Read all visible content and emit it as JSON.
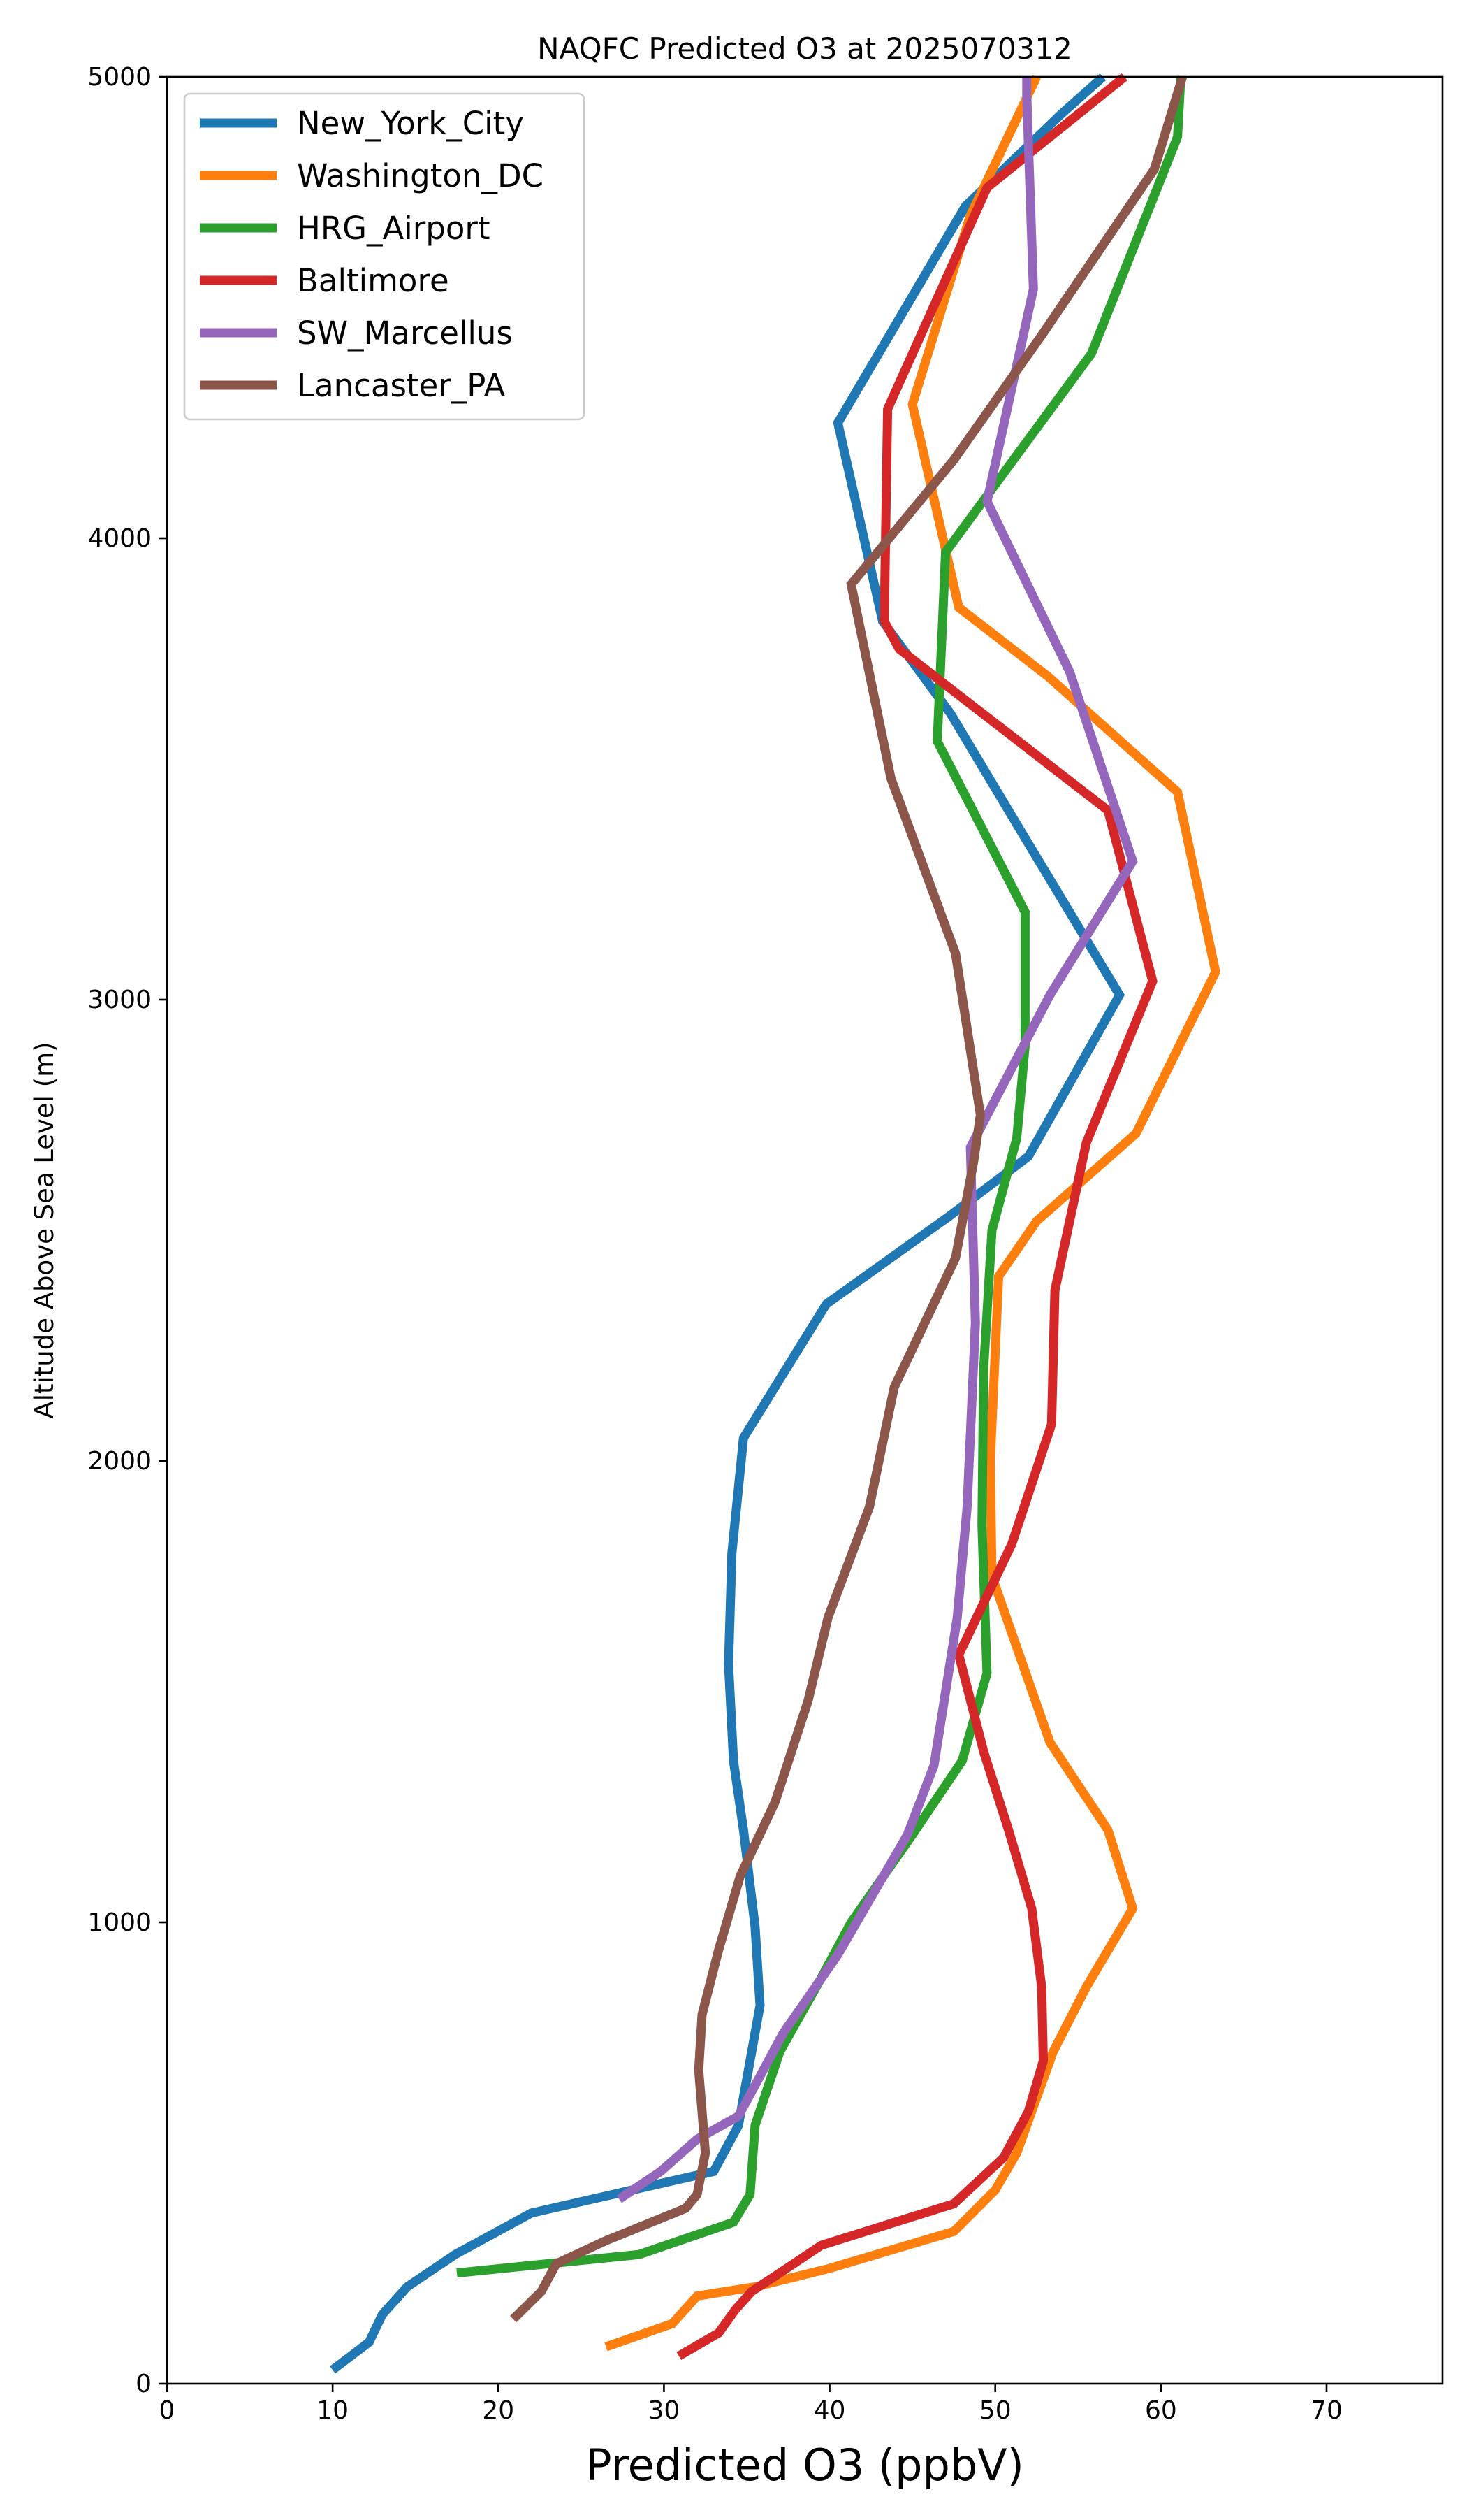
{
  "chart_data": {
    "type": "line",
    "title": "NAQFC Predicted O3 at 2025070312",
    "xlabel": "Predicted O3 (ppbV)",
    "ylabel": "Altitude Above Sea Level (m)",
    "xlim": [
      0,
      77
    ],
    "ylim": [
      0,
      5000
    ],
    "x_ticks": [
      0,
      10,
      20,
      30,
      40,
      50,
      60,
      70
    ],
    "y_ticks": [
      0,
      1000,
      2000,
      3000,
      4000,
      5000
    ],
    "grid": false,
    "legend_position": "upper-left",
    "series": [
      {
        "name": "New_York_City",
        "color": "#1f77b4",
        "points": [
          [
            10,
            30
          ],
          [
            12.2,
            90
          ],
          [
            13,
            150
          ],
          [
            14.5,
            210
          ],
          [
            17.4,
            280
          ],
          [
            22,
            370
          ],
          [
            33,
            460
          ],
          [
            34.5,
            560
          ],
          [
            35.2,
            700
          ],
          [
            35.8,
            820
          ],
          [
            35.5,
            990
          ],
          [
            34.8,
            1200
          ],
          [
            34.2,
            1350
          ],
          [
            33.9,
            1560
          ],
          [
            34.1,
            1800
          ],
          [
            34.8,
            2050
          ],
          [
            39.8,
            2340
          ],
          [
            47.2,
            2530
          ],
          [
            52,
            2660
          ],
          [
            57.5,
            3010
          ],
          [
            51.3,
            3380
          ],
          [
            47.3,
            3620
          ],
          [
            43.2,
            3820
          ],
          [
            40.5,
            4250
          ],
          [
            48.2,
            4720
          ],
          [
            54,
            4920
          ],
          [
            56.5,
            5000
          ]
        ]
      },
      {
        "name": "Washington_DC",
        "color": "#ff7f0e",
        "points": [
          [
            26.5,
            80
          ],
          [
            30.5,
            130
          ],
          [
            32,
            190
          ],
          [
            35.5,
            210
          ],
          [
            40,
            250
          ],
          [
            47.5,
            330
          ],
          [
            50,
            420
          ],
          [
            51.3,
            500
          ],
          [
            52.5,
            620
          ],
          [
            53.5,
            720
          ],
          [
            55.5,
            860
          ],
          [
            58.3,
            1030
          ],
          [
            56.8,
            1200
          ],
          [
            53.3,
            1390
          ],
          [
            49.8,
            1750
          ],
          [
            49.7,
            2000
          ],
          [
            50.2,
            2400
          ],
          [
            52.5,
            2520
          ],
          [
            58.5,
            2710
          ],
          [
            63.3,
            3060
          ],
          [
            61,
            3450
          ],
          [
            53.2,
            3700
          ],
          [
            47.8,
            3850
          ],
          [
            45,
            4290
          ],
          [
            48.5,
            4700
          ],
          [
            52.5,
            5000
          ]
        ]
      },
      {
        "name": "HRG_Airport",
        "color": "#2ca02c",
        "points": [
          [
            17.5,
            240
          ],
          [
            28.5,
            280
          ],
          [
            34.2,
            350
          ],
          [
            35.2,
            410
          ],
          [
            35.5,
            560
          ],
          [
            37,
            720
          ],
          [
            39.2,
            860
          ],
          [
            41.3,
            1000
          ],
          [
            45,
            1190
          ],
          [
            48,
            1350
          ],
          [
            49.5,
            1540
          ],
          [
            49.2,
            1860
          ],
          [
            49.3,
            2200
          ],
          [
            49.8,
            2500
          ],
          [
            51.3,
            2700
          ],
          [
            51.8,
            2900
          ],
          [
            51.8,
            3190
          ],
          [
            46.5,
            3560
          ],
          [
            47,
            3970
          ],
          [
            55.8,
            4400
          ],
          [
            61,
            4870
          ],
          [
            61.2,
            5000
          ]
        ]
      },
      {
        "name": "Baltimore",
        "color": "#d62728",
        "points": [
          [
            30.9,
            60
          ],
          [
            33.3,
            110
          ],
          [
            34.3,
            160
          ],
          [
            35.3,
            200
          ],
          [
            37,
            240
          ],
          [
            39.5,
            300
          ],
          [
            47.5,
            390
          ],
          [
            50.5,
            490
          ],
          [
            52,
            590
          ],
          [
            52.9,
            700
          ],
          [
            52.8,
            860
          ],
          [
            52.2,
            1030
          ],
          [
            50.8,
            1200
          ],
          [
            49.3,
            1370
          ],
          [
            47.8,
            1580
          ],
          [
            51,
            1820
          ],
          [
            53.4,
            2080
          ],
          [
            53.6,
            2370
          ],
          [
            55.5,
            2690
          ],
          [
            59.5,
            3040
          ],
          [
            56.8,
            3410
          ],
          [
            44.2,
            3760
          ],
          [
            43.3,
            3820
          ],
          [
            43.5,
            4280
          ],
          [
            49.5,
            4760
          ],
          [
            57.8,
            5000
          ]
        ]
      },
      {
        "name": "SW_Marcellus",
        "color": "#9467bd",
        "points": [
          [
            27.3,
            400
          ],
          [
            29.8,
            460
          ],
          [
            32,
            530
          ],
          [
            34.5,
            580
          ],
          [
            35.7,
            660
          ],
          [
            37.2,
            760
          ],
          [
            40.5,
            930
          ],
          [
            44.7,
            1190
          ],
          [
            46.3,
            1340
          ],
          [
            47.7,
            1660
          ],
          [
            48.3,
            1900
          ],
          [
            48.8,
            2300
          ],
          [
            48.5,
            2680
          ],
          [
            53.3,
            3010
          ],
          [
            58.3,
            3300
          ],
          [
            54.5,
            3710
          ],
          [
            49.5,
            4080
          ],
          [
            52.3,
            4540
          ],
          [
            51.9,
            4960
          ],
          [
            51.9,
            5000
          ]
        ]
      },
      {
        "name": "Lancaster_PA",
        "color": "#8c564b",
        "points": [
          [
            20.9,
            140
          ],
          [
            22.6,
            200
          ],
          [
            23.5,
            260
          ],
          [
            26.5,
            310
          ],
          [
            31.3,
            380
          ],
          [
            32,
            410
          ],
          [
            32.5,
            500
          ],
          [
            32.1,
            680
          ],
          [
            32.3,
            800
          ],
          [
            33.3,
            940
          ],
          [
            34.6,
            1100
          ],
          [
            36.7,
            1260
          ],
          [
            38.7,
            1480
          ],
          [
            39.9,
            1660
          ],
          [
            42.4,
            1900
          ],
          [
            43.9,
            2160
          ],
          [
            47.6,
            2440
          ],
          [
            48.7,
            2650
          ],
          [
            49.1,
            2750
          ],
          [
            47.6,
            3100
          ],
          [
            43.7,
            3480
          ],
          [
            41.3,
            3900
          ],
          [
            47.5,
            4170
          ],
          [
            52.8,
            4440
          ],
          [
            59.6,
            4800
          ],
          [
            61.3,
            5000
          ]
        ]
      }
    ]
  }
}
